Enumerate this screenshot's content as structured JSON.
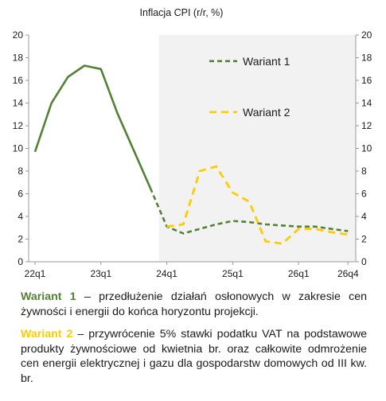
{
  "chart_data": {
    "type": "line",
    "title": "Inflacja CPI (r/r, %)",
    "ylim": [
      0,
      20
    ],
    "y_ticks": [
      "0",
      "2",
      "4",
      "6",
      "8",
      "10",
      "12",
      "14",
      "16",
      "18",
      "20"
    ],
    "x_tick_labels": [
      "22q1",
      "23q1",
      "24q1",
      "25q1",
      "26q1",
      "26q4"
    ],
    "projection_shading_from": "24q1",
    "grid": false,
    "legend_position": "top-right",
    "history": {
      "x": [
        "22q1",
        "22q2",
        "22q3",
        "22q4",
        "23q1",
        "23q2",
        "23q3",
        "23q4"
      ],
      "values": [
        9.7,
        14.0,
        16.3,
        17.3,
        17.0,
        13.1,
        9.8,
        6.5
      ]
    },
    "series": [
      {
        "name": "Wariant 1",
        "color": "#538135",
        "x": [
          "23q4",
          "24q1",
          "24q2",
          "24q3",
          "24q4",
          "25q1",
          "25q2",
          "25q3",
          "25q4",
          "26q1",
          "26q2",
          "26q3",
          "26q4"
        ],
        "values": [
          6.5,
          3.1,
          2.5,
          2.9,
          3.3,
          3.6,
          3.5,
          3.3,
          3.2,
          3.1,
          3.1,
          2.9,
          2.7
        ]
      },
      {
        "name": "Wariant 2",
        "color": "#ffcc00",
        "x": [
          "24q1",
          "24q2",
          "24q3",
          "24q4",
          "25q1",
          "25q2",
          "25q3",
          "25q4",
          "26q1",
          "26q2",
          "26q3",
          "26q4"
        ],
        "values": [
          3.1,
          3.3,
          8.0,
          8.4,
          6.1,
          5.3,
          1.8,
          1.6,
          2.9,
          2.9,
          2.6,
          2.4
        ]
      }
    ]
  },
  "notes": [
    {
      "label": "Wariant 1",
      "text": " – przedłużenie działań osłonowych w zakresie cen żywności i energii do końca horyzontu projekcji."
    },
    {
      "label": "Wariant 2",
      "text": " – przywrócenie 5% stawki podatku VAT na podstawowe produkty żywnościowe od kwietnia br. oraz całkowite odmrożenie cen energii elektrycznej i gazu dla gospodarstw domowych od III kw. br."
    }
  ],
  "colors": {
    "wariant1": "#538135",
    "wariant2": "#ffcc00",
    "shading": "#f2f2f2",
    "axis": "#999999"
  }
}
